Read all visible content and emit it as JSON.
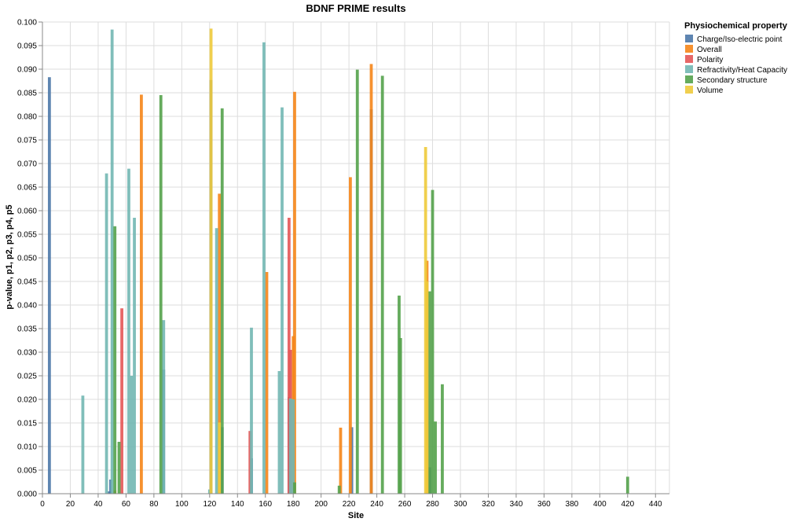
{
  "chart_data": {
    "type": "bar",
    "title": "BDNF PRIME results",
    "xlabel": "Site",
    "ylabel": "p-value, p1, p2, p3, p4, p5",
    "xlim": [
      0,
      450
    ],
    "ylim": [
      0,
      0.1
    ],
    "x_ticks": [
      0,
      20,
      40,
      60,
      80,
      100,
      120,
      140,
      160,
      180,
      200,
      220,
      240,
      260,
      280,
      300,
      320,
      340,
      360,
      380,
      400,
      420,
      440
    ],
    "y_ticks": [
      0,
      0.005,
      0.01,
      0.015,
      0.02,
      0.025,
      0.03,
      0.035,
      0.04,
      0.045,
      0.05,
      0.055,
      0.06,
      0.065,
      0.07,
      0.075,
      0.08,
      0.085,
      0.09,
      0.095,
      0.1
    ],
    "grid": true,
    "legend_position": "top-right",
    "legend_title": "Physiochemical property",
    "series": [
      {
        "name": "Charge/Iso-electric point",
        "color": "#4c78a8",
        "points": [
          [
            5,
            0.0883
          ],
          [
            48,
            0.0005
          ],
          [
            49,
            0.003
          ],
          [
            87,
            0.0263
          ],
          [
            121,
            0.0877
          ],
          [
            129,
            0.0141
          ],
          [
            150,
            0.0075
          ],
          [
            177,
            0.0205
          ],
          [
            222,
            0.0141
          ],
          [
            236,
            0.0815
          ],
          [
            278,
            0.0056
          ]
        ]
      },
      {
        "name": "Overall",
        "color": "#f58518",
        "points": [
          [
            52,
            0.0007
          ],
          [
            71,
            0.0846
          ],
          [
            127,
            0.0636
          ],
          [
            161,
            0.047
          ],
          [
            180,
            0.0334
          ],
          [
            181,
            0.0852
          ],
          [
            214,
            0.014
          ],
          [
            221,
            0.0671
          ],
          [
            236,
            0.0911
          ],
          [
            276,
            0.0494
          ]
        ]
      },
      {
        "name": "Polarity",
        "color": "#e45756",
        "points": [
          [
            57,
            0.0393
          ],
          [
            149,
            0.0133
          ],
          [
            177,
            0.0585
          ],
          [
            178,
            0.0305
          ]
        ]
      },
      {
        "name": "Refractivity/Heat Capacity",
        "color": "#72b7b2",
        "points": [
          [
            29,
            0.0208
          ],
          [
            46,
            0.0679
          ],
          [
            50,
            0.0984
          ],
          [
            62,
            0.0689
          ],
          [
            64,
            0.025
          ],
          [
            66,
            0.0585
          ],
          [
            87,
            0.0368
          ],
          [
            120,
            0.0009
          ],
          [
            125,
            0.0563
          ],
          [
            150,
            0.0352
          ],
          [
            159,
            0.0957
          ],
          [
            170,
            0.026
          ],
          [
            172,
            0.0819
          ],
          [
            178,
            0.0202
          ],
          [
            180,
            0.02
          ]
        ]
      },
      {
        "name": "Secondary structure",
        "color": "#54a24b",
        "points": [
          [
            52,
            0.0567
          ],
          [
            55,
            0.011
          ],
          [
            85,
            0.0845
          ],
          [
            129,
            0.0817
          ],
          [
            181,
            0.0024
          ],
          [
            213,
            0.0017
          ],
          [
            226,
            0.0899
          ],
          [
            244,
            0.0886
          ],
          [
            256,
            0.042
          ],
          [
            257,
            0.033
          ],
          [
            278,
            0.0429
          ],
          [
            280,
            0.0644
          ],
          [
            282,
            0.0153
          ],
          [
            287,
            0.0232
          ],
          [
            420,
            0.0036
          ]
        ]
      },
      {
        "name": "Volume",
        "color": "#eeca3b",
        "points": [
          [
            121,
            0.0986
          ],
          [
            127,
            0.0151
          ],
          [
            275,
            0.0735
          ],
          [
            276,
            0.045
          ]
        ]
      }
    ]
  }
}
